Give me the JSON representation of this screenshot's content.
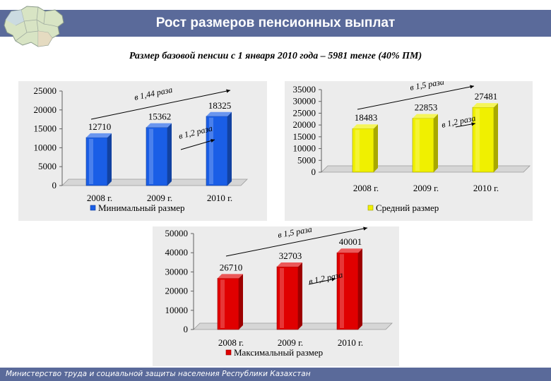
{
  "header": {
    "title": "Рост  размеров пенсионных выплат"
  },
  "subtitle": "Размер базовой пенсии с 1 января 2010 года – 5981 тенге (40% ПМ)",
  "footer": {
    "text": "Министерство труда и социальной защиты населения Республики Казахстан"
  },
  "colors": {
    "header": "#5a6a9a",
    "panel": "#ececec",
    "blue": "#1a5ee6",
    "yellow": "#f0f000",
    "red": "#e00000"
  },
  "chart_data": [
    {
      "type": "bar",
      "categories": [
        "2008 г.",
        "2009 г.",
        "2010 г."
      ],
      "series": [
        {
          "name": "Минимальный размер",
          "values": [
            12710,
            15362,
            18325
          ]
        }
      ],
      "ylim": [
        0,
        25000
      ],
      "yticks": [
        0,
        5000,
        10000,
        15000,
        20000,
        25000
      ],
      "ytick_labels": [
        "0",
        "5000",
        "10000",
        "15000",
        "20000",
        "25000"
      ],
      "value_labels": [
        "12710",
        "15362",
        "18325"
      ],
      "annotations": [
        "в 1,44 раза",
        "в 1,2 раза"
      ],
      "legend": "bottom",
      "color": "#1a5ee6"
    },
    {
      "type": "bar",
      "categories": [
        "2008 г.",
        "2009 г.",
        "2010 г."
      ],
      "series": [
        {
          "name": "Средний размер",
          "values": [
            18483,
            22853,
            27481
          ]
        }
      ],
      "ylim": [
        0,
        35000
      ],
      "yticks": [
        0,
        5000,
        10000,
        15000,
        20000,
        25000,
        30000,
        35000
      ],
      "ytick_labels": [
        "0",
        "5000",
        "10000",
        "15000",
        "20000",
        "25000",
        "30000",
        "35000"
      ],
      "value_labels": [
        "18483",
        "22853",
        "27481"
      ],
      "annotations": [
        "в 1,5 раза",
        "в 1,2 раза"
      ],
      "legend": "bottom",
      "color": "#f0f000"
    },
    {
      "type": "bar",
      "categories": [
        "2008 г.",
        "2009 г.",
        "2010 г."
      ],
      "series": [
        {
          "name": "Максимальный размер",
          "values": [
            26710,
            32703,
            40001
          ]
        }
      ],
      "ylim": [
        0,
        50000
      ],
      "yticks": [
        0,
        10000,
        20000,
        30000,
        40000,
        50000
      ],
      "ytick_labels": [
        "0",
        "10000",
        "20000",
        "30000",
        "40000",
        "50000"
      ],
      "value_labels": [
        "26710",
        "32703",
        "40001"
      ],
      "annotations": [
        "в 1,5 раза",
        "в 1,2 раза"
      ],
      "legend": "bottom",
      "color": "#e00000"
    }
  ]
}
